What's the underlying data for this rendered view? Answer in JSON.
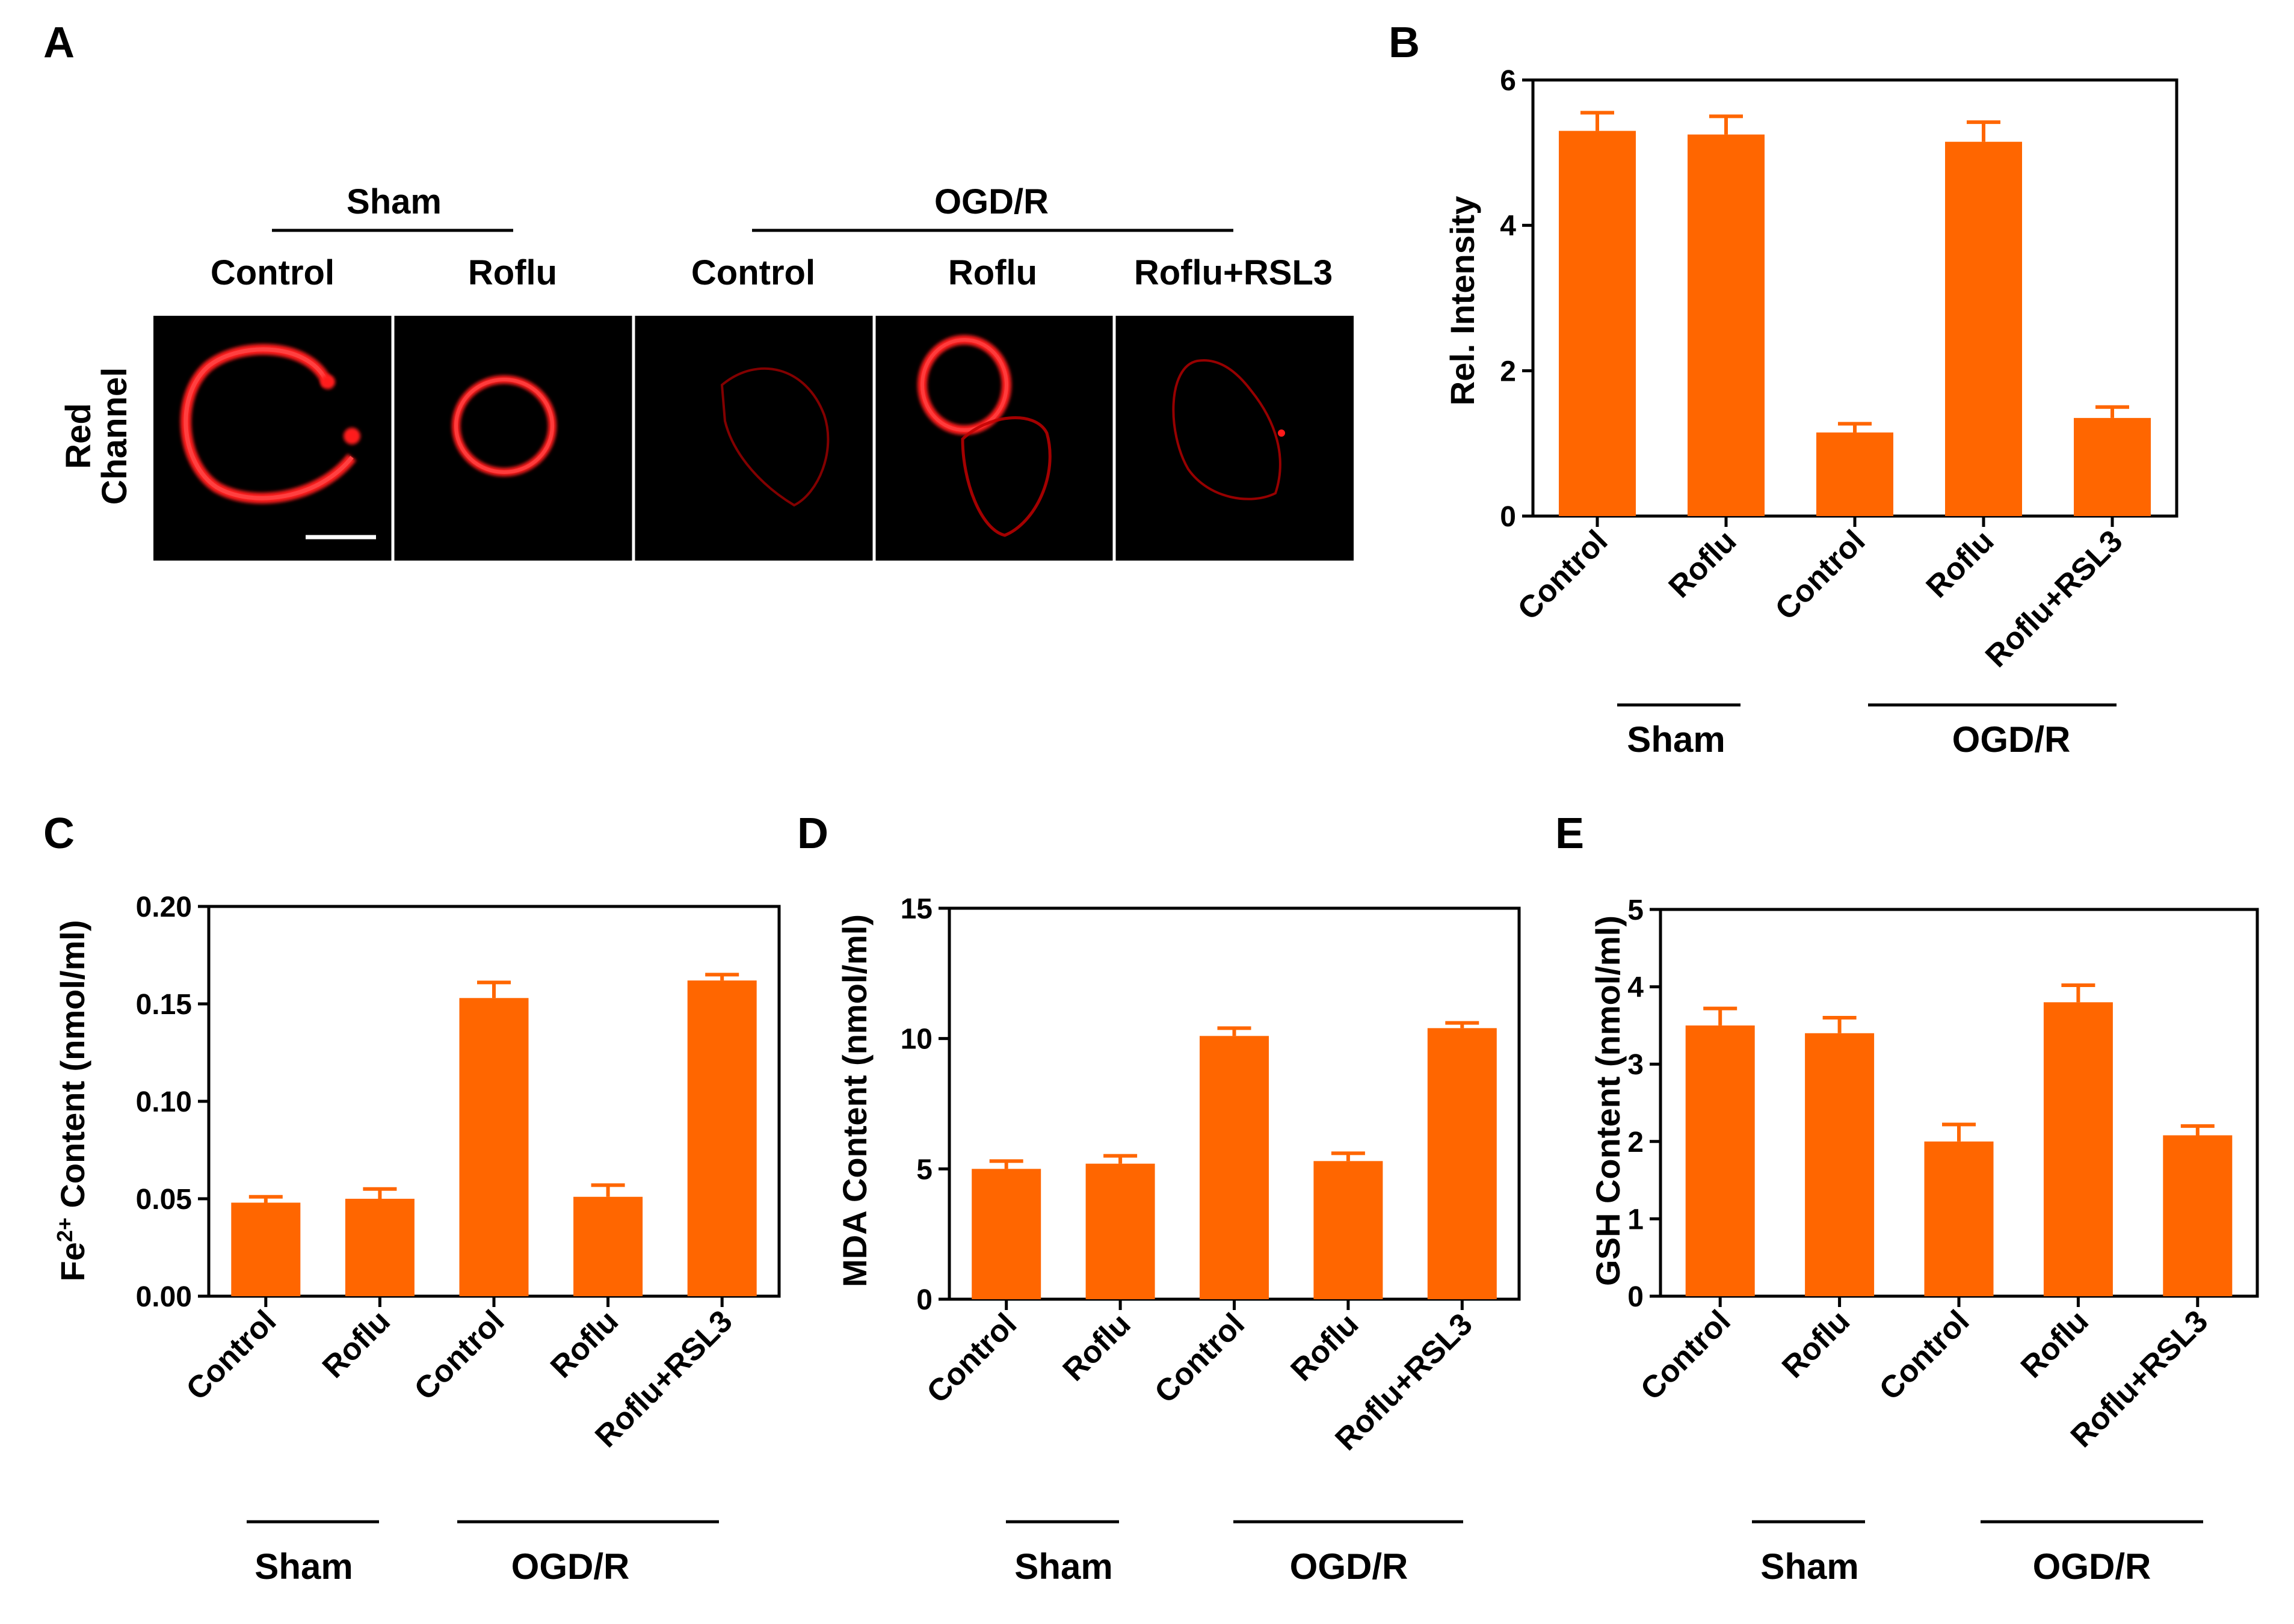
{
  "panels": {
    "A": {
      "letter": "A",
      "groups": [
        "Sham",
        "OGD/R"
      ],
      "columns": [
        "Control",
        "Roflu",
        "Control",
        "Roflu",
        "Roflu+RSL3"
      ],
      "row_label_lines": [
        "Red",
        "Channel"
      ]
    },
    "B": "B",
    "C": "C",
    "D": "D",
    "E": "E"
  },
  "colors": {
    "bar": "#ff6600",
    "image_bg": "#000000",
    "signal": "#ff1a1a"
  },
  "chart_data": [
    {
      "id": "B",
      "type": "bar",
      "categories": [
        "Control",
        "Roflu",
        "Control",
        "Roflu",
        "Roflu+RSL3"
      ],
      "values": [
        5.3,
        5.25,
        1.15,
        5.15,
        1.35
      ],
      "errors": [
        0.25,
        0.25,
        0.12,
        0.27,
        0.15
      ],
      "ylabel": "Rel. Intensity",
      "ylim": [
        0,
        6
      ],
      "yticks": [
        "0",
        "2",
        "4",
        "6"
      ],
      "groups": [
        "Sham",
        "OGD/R"
      ]
    },
    {
      "id": "C",
      "type": "bar",
      "categories": [
        "Control",
        "Roflu",
        "Control",
        "Roflu",
        "Roflu+RSL3"
      ],
      "values": [
        0.048,
        0.05,
        0.153,
        0.051,
        0.162
      ],
      "errors": [
        0.003,
        0.005,
        0.008,
        0.006,
        0.003
      ],
      "ylabel_base": "Fe",
      "ylabel_sup": "2+",
      "ylabel_rest": " Content (nmol/ml)",
      "ylim": [
        0,
        0.2
      ],
      "yticks": [
        "0.00",
        "0.05",
        "0.10",
        "0.15",
        "0.20"
      ],
      "groups": [
        "Sham",
        "OGD/R"
      ]
    },
    {
      "id": "D",
      "type": "bar",
      "categories": [
        "Control",
        "Roflu",
        "Control",
        "Roflu",
        "Roflu+RSL3"
      ],
      "values": [
        5.0,
        5.2,
        10.1,
        5.3,
        10.4
      ],
      "errors": [
        0.3,
        0.3,
        0.3,
        0.3,
        0.2
      ],
      "ylabel": "MDA Content (nmol/ml)",
      "ylim": [
        0,
        15
      ],
      "yticks": [
        "0",
        "5",
        "10",
        "15"
      ],
      "groups": [
        "Sham",
        "OGD/R"
      ]
    },
    {
      "id": "E",
      "type": "bar",
      "categories": [
        "Control",
        "Roflu",
        "Control",
        "Roflu",
        "Roflu+RSL3"
      ],
      "values": [
        3.5,
        3.4,
        2.0,
        3.8,
        2.08
      ],
      "errors": [
        0.22,
        0.2,
        0.22,
        0.22,
        0.12
      ],
      "ylabel": "GSH Content (nmol/ml)",
      "ylim": [
        0,
        5
      ],
      "yticks": [
        "0",
        "1",
        "2",
        "3",
        "4",
        "5"
      ],
      "groups": [
        "Sham",
        "OGD/R"
      ]
    }
  ]
}
